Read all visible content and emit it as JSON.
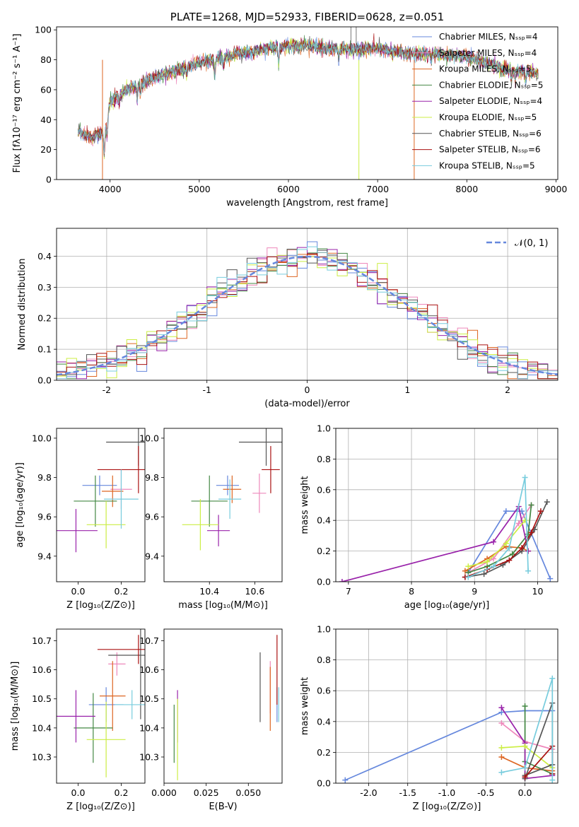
{
  "colors": {
    "Chabrier MILES": "#6688dd",
    "Salpeter MILES": "#ee88bb",
    "Kroupa MILES": "#dd6622",
    "Chabrier ELODIE": "#448844",
    "Salpeter ELODIE": "#9922aa",
    "Kroupa ELODIE": "#ccee44",
    "Chabrier STELIB": "#555555",
    "Salpeter STELIB": "#aa1111",
    "Kroupa STELIB": "#77ccdd"
  },
  "chart_data": [
    {
      "id": "spectrum",
      "type": "line",
      "title": "PLATE=1268, MJD=52933, FIBERID=0628, z=0.051",
      "xlabel": "wavelength [Angstrom, rest frame]",
      "ylabel": "Flux [fλ10⁻¹⁷ erg cm⁻² s⁻¹ A⁻¹]",
      "xlim": [
        3400,
        9020
      ],
      "ylim": [
        0,
        102
      ],
      "xticks": [
        4000,
        5000,
        6000,
        7000,
        8000,
        9000
      ],
      "yticks": [
        0,
        20,
        40,
        60,
        80,
        100
      ],
      "legend": "top-right",
      "legend_entries": [
        "Chabrier MILES, Nₛₛₚ=4",
        "Salpeter MILES, Nₛₛₚ=4",
        "Kroupa MILES, Nₛₛₚ=5",
        "Chabrier ELODIE, Nₛₛₚ=5",
        "Salpeter ELODIE, Nₛₛₚ=4",
        "Kroupa ELODIE, Nₛₛₚ=5",
        "Chabrier STELIB, Nₛₛₚ=6",
        "Salpeter STELIB, Nₛₛₚ=6",
        "Kroupa STELIB, Nₛₛₚ=5"
      ],
      "continuum_x": [
        3640,
        3800,
        3950,
        4000,
        4200,
        4500,
        5000,
        5300,
        5800,
        6200,
        6500,
        6800,
        7000,
        7300,
        7600,
        8000,
        8400,
        8800
      ],
      "continuum_y": [
        32,
        28,
        32,
        52,
        60,
        68,
        78,
        82,
        88,
        90,
        87,
        87,
        88,
        84,
        84,
        82,
        74,
        71
      ]
    },
    {
      "id": "residuals",
      "type": "histogram",
      "xlabel": "(data-model)/error",
      "ylabel": "Normed distribution",
      "xlim": [
        -2.5,
        2.5
      ],
      "ylim": [
        0,
        0.49
      ],
      "xticks": [
        -2,
        -1,
        0,
        1,
        2
      ],
      "yticks": [
        0.0,
        0.1,
        0.2,
        0.3,
        0.4
      ],
      "legend": "top-right",
      "reference_curve": "𝒩(0, 1)"
    },
    {
      "id": "age_vs_Z",
      "type": "errorbar",
      "xlabel": "Z [log₁₀(Z/Z⊙)]",
      "ylabel": "age [log₁₀(age/yr)]",
      "xlim": [
        -0.1,
        0.31
      ],
      "ylim": [
        9.27,
        10.05
      ],
      "xticks": [
        0.0,
        0.2
      ],
      "yticks": [
        9.4,
        9.6,
        9.8,
        10.0
      ],
      "points": [
        {
          "model": "Chabrier MILES",
          "x": 0.1,
          "y": 9.76,
          "xerr": 0.08,
          "yerr": 0.05
        },
        {
          "model": "Salpeter MILES",
          "x": 0.2,
          "y": 9.74,
          "xerr": 0.05,
          "yerr": 0.1
        },
        {
          "model": "Kroupa MILES",
          "x": 0.16,
          "y": 9.73,
          "xerr": 0.05,
          "yerr": 0.08
        },
        {
          "model": "Chabrier ELODIE",
          "x": 0.08,
          "y": 9.68,
          "xerr": 0.1,
          "yerr": 0.13
        },
        {
          "model": "Salpeter ELODIE",
          "x": -0.01,
          "y": 9.53,
          "xerr": 0.1,
          "yerr": 0.11
        },
        {
          "model": "Kroupa ELODIE",
          "x": 0.13,
          "y": 9.56,
          "xerr": 0.09,
          "yerr": 0.12
        },
        {
          "model": "Chabrier STELIB",
          "x": 0.28,
          "y": 9.98,
          "xerr": 0.15,
          "yerr": 0.12
        },
        {
          "model": "Salpeter STELIB",
          "x": 0.28,
          "y": 9.84,
          "xerr": 0.19,
          "yerr": 0.12
        },
        {
          "model": "Kroupa STELIB",
          "x": 0.2,
          "y": 9.69,
          "xerr": 0.08,
          "yerr": 0.15
        }
      ]
    },
    {
      "id": "age_vs_mass",
      "type": "errorbar",
      "xlabel": "mass [log₁₀(M/M⊙)]",
      "ylabel": "",
      "xlim": [
        10.2,
        10.72
      ],
      "ylim": [
        9.27,
        10.05
      ],
      "xticks": [
        10.4,
        10.6
      ],
      "yticks": [
        9.4,
        9.6,
        9.8,
        10.0
      ],
      "points": [
        {
          "model": "Chabrier MILES",
          "x": 10.48,
          "y": 9.76,
          "xerr": 0.05,
          "yerr": 0.05
        },
        {
          "model": "Salpeter MILES",
          "x": 10.62,
          "y": 9.72,
          "xerr": 0.03,
          "yerr": 0.1
        },
        {
          "model": "Kroupa MILES",
          "x": 10.5,
          "y": 9.74,
          "xerr": 0.04,
          "yerr": 0.07
        },
        {
          "model": "Chabrier ELODIE",
          "x": 10.4,
          "y": 9.68,
          "xerr": 0.08,
          "yerr": 0.13
        },
        {
          "model": "Salpeter ELODIE",
          "x": 10.44,
          "y": 9.53,
          "xerr": 0.05,
          "yerr": 0.08
        },
        {
          "model": "Kroupa ELODIE",
          "x": 10.36,
          "y": 9.56,
          "xerr": 0.08,
          "yerr": 0.13
        },
        {
          "model": "Chabrier STELIB",
          "x": 10.65,
          "y": 9.98,
          "xerr": 0.12,
          "yerr": 0.12
        },
        {
          "model": "Salpeter STELIB",
          "x": 10.67,
          "y": 9.84,
          "xerr": 0.04,
          "yerr": 0.12
        },
        {
          "model": "Kroupa STELIB",
          "x": 10.49,
          "y": 9.69,
          "xerr": 0.05,
          "yerr": 0.1
        }
      ]
    },
    {
      "id": "massweight_vs_age",
      "type": "line",
      "xlabel": "age [log₁₀(age/yr)]",
      "ylabel": "mass weight",
      "xlim": [
        6.8,
        10.32
      ],
      "ylim": [
        0,
        1.0
      ],
      "xticks": [
        7,
        8,
        9,
        10
      ],
      "yticks": [
        0.0,
        0.2,
        0.4,
        0.6,
        0.8,
        1.0
      ],
      "grid": true,
      "series": [
        {
          "model": "Chabrier MILES",
          "x": [
            8.9,
            9.5,
            9.75,
            10.2
          ],
          "y": [
            0.06,
            0.46,
            0.46,
            0.02
          ]
        },
        {
          "model": "Salpeter MILES",
          "x": [
            8.9,
            9.3,
            9.7,
            9.9
          ],
          "y": [
            0.06,
            0.15,
            0.38,
            0.5
          ]
        },
        {
          "model": "Kroupa MILES",
          "x": [
            8.85,
            9.2,
            9.5,
            9.75,
            9.85
          ],
          "y": [
            0.07,
            0.15,
            0.23,
            0.22,
            0.2
          ]
        },
        {
          "model": "Chabrier ELODIE",
          "x": [
            8.9,
            9.2,
            9.6,
            9.85,
            9.9
          ],
          "y": [
            0.06,
            0.1,
            0.18,
            0.31,
            0.5
          ]
        },
        {
          "model": "Salpeter ELODIE",
          "x": [
            6.9,
            9.3,
            9.7,
            9.85
          ],
          "y": [
            0.0,
            0.26,
            0.49,
            0.2
          ]
        },
        {
          "model": "Kroupa ELODIE",
          "x": [
            8.9,
            9.2,
            9.5,
            9.8
          ],
          "y": [
            0.1,
            0.13,
            0.25,
            0.4
          ]
        },
        {
          "model": "Chabrier STELIB",
          "x": [
            8.85,
            9.15,
            9.45,
            9.75,
            9.95,
            10.15
          ],
          "y": [
            0.03,
            0.05,
            0.11,
            0.2,
            0.34,
            0.52
          ]
        },
        {
          "model": "Salpeter STELIB",
          "x": [
            8.85,
            9.2,
            9.55,
            9.75,
            9.9,
            10.05
          ],
          "y": [
            0.03,
            0.08,
            0.14,
            0.22,
            0.32,
            0.46
          ]
        },
        {
          "model": "Kroupa STELIB",
          "x": [
            8.9,
            9.3,
            9.55,
            9.8,
            9.85
          ],
          "y": [
            0.03,
            0.1,
            0.22,
            0.68,
            0.07
          ]
        }
      ]
    },
    {
      "id": "mass_vs_Z",
      "type": "errorbar",
      "xlabel": "Z [log₁₀(Z/Z⊙)]",
      "ylabel": "mass [log₁₀(M/M⊙)]",
      "xlim": [
        -0.1,
        0.31
      ],
      "ylim": [
        10.21,
        10.74
      ],
      "xticks": [
        0.0,
        0.2
      ],
      "yticks": [
        10.3,
        10.4,
        10.5,
        10.6,
        10.7
      ],
      "points": [
        {
          "model": "Chabrier MILES",
          "x": 0.13,
          "y": 10.48,
          "xerr": 0.08,
          "yerr": 0.06
        },
        {
          "model": "Salpeter MILES",
          "x": 0.18,
          "y": 10.62,
          "xerr": 0.04,
          "yerr": 0.04
        },
        {
          "model": "Kroupa MILES",
          "x": 0.16,
          "y": 10.51,
          "xerr": 0.06,
          "yerr": 0.12
        },
        {
          "model": "Chabrier ELODIE",
          "x": 0.07,
          "y": 10.4,
          "xerr": 0.09,
          "yerr": 0.12
        },
        {
          "model": "Salpeter ELODIE",
          "x": -0.01,
          "y": 10.44,
          "xerr": 0.09,
          "yerr": 0.09
        },
        {
          "model": "Kroupa ELODIE",
          "x": 0.13,
          "y": 10.36,
          "xerr": 0.09,
          "yerr": 0.13
        },
        {
          "model": "Chabrier STELIB",
          "x": 0.29,
          "y": 10.65,
          "xerr": 0.15,
          "yerr": 0.22
        },
        {
          "model": "Salpeter STELIB",
          "x": 0.28,
          "y": 10.67,
          "xerr": 0.19,
          "yerr": 0.05
        },
        {
          "model": "Kroupa STELIB",
          "x": 0.25,
          "y": 10.48,
          "xerr": 0.08,
          "yerr": 0.05
        }
      ]
    },
    {
      "id": "mass_vs_ebv",
      "type": "errorbar",
      "xlabel": "E(B-V)",
      "ylabel": "",
      "xlim": [
        0.0,
        0.07
      ],
      "ylim": [
        10.21,
        10.74
      ],
      "xticks": [
        0.0,
        0.025,
        0.05
      ],
      "xticklabels": [
        "0.000",
        "0.025",
        "0.050"
      ],
      "yticks": [
        10.3,
        10.4,
        10.5,
        10.6,
        10.7
      ],
      "points": [
        {
          "model": "Chabrier MILES",
          "x": 0.067,
          "y": 10.48,
          "xerr": 0.0,
          "yerr": 0.06
        },
        {
          "model": "Salpeter MILES",
          "x": 0.063,
          "y": 10.54,
          "xerr": 0.0,
          "yerr": 0.09
        },
        {
          "model": "Kroupa MILES",
          "x": 0.063,
          "y": 10.5,
          "xerr": 0.0,
          "yerr": 0.11
        },
        {
          "model": "Chabrier ELODIE",
          "x": 0.006,
          "y": 10.38,
          "xerr": 0.0,
          "yerr": 0.1
        },
        {
          "model": "Salpeter ELODIE",
          "x": 0.008,
          "y": 10.44,
          "xerr": 0.0,
          "yerr": 0.09
        },
        {
          "model": "Kroupa ELODIE",
          "x": 0.008,
          "y": 10.36,
          "xerr": 0.0,
          "yerr": 0.14
        },
        {
          "model": "Chabrier STELIB",
          "x": 0.057,
          "y": 10.54,
          "xerr": 0.0,
          "yerr": 0.12
        },
        {
          "model": "Salpeter STELIB",
          "x": 0.067,
          "y": 10.6,
          "xerr": 0.0,
          "yerr": 0.12
        },
        {
          "model": "Kroupa STELIB",
          "x": 0.068,
          "y": 10.48,
          "xerr": 0.0,
          "yerr": 0.06
        }
      ]
    },
    {
      "id": "massweight_vs_Z",
      "type": "line",
      "xlabel": "Z [log₁₀(Z/Z⊙)]",
      "ylabel": "mass weight",
      "xlim": [
        -2.42,
        0.42
      ],
      "ylim": [
        0,
        1.0
      ],
      "xticks": [
        -2.0,
        -1.5,
        -1.0,
        -0.5,
        0.0
      ],
      "yticks": [
        0.0,
        0.2,
        0.4,
        0.6,
        0.8,
        1.0
      ],
      "grid": true,
      "series": [
        {
          "model": "Chabrier MILES",
          "x": [
            -2.3,
            -0.3,
            0.0,
            0.35
          ],
          "y": [
            0.02,
            0.46,
            0.47,
            0.47
          ]
        },
        {
          "model": "Salpeter MILES",
          "x": [
            -0.3,
            0.0,
            0.35
          ],
          "y": [
            0.39,
            0.27,
            0.22
          ]
        },
        {
          "model": "Kroupa MILES",
          "x": [
            -0.3,
            0.0,
            0.35
          ],
          "y": [
            0.17,
            0.1,
            0.08
          ]
        },
        {
          "model": "Chabrier ELODIE",
          "x": [
            0.0,
            0.0,
            0.35
          ],
          "y": [
            0.5,
            0.14,
            0.06
          ]
        },
        {
          "model": "Salpeter ELODIE",
          "x": [
            -0.3,
            0.0,
            0.0,
            0.35
          ],
          "y": [
            0.49,
            0.26,
            0.03,
            0.05
          ]
        },
        {
          "model": "Kroupa ELODIE",
          "x": [
            -0.3,
            0.0,
            0.35
          ],
          "y": [
            0.23,
            0.24,
            0.1
          ]
        },
        {
          "model": "Chabrier STELIB",
          "x": [
            0.0,
            0.35,
            0.35,
            0.0
          ],
          "y": [
            0.03,
            0.52,
            0.12,
            0.05
          ]
        },
        {
          "model": "Salpeter STELIB",
          "x": [
            0.0,
            0.35,
            0.35
          ],
          "y": [
            0.04,
            0.24,
            0.06
          ]
        },
        {
          "model": "Kroupa STELIB",
          "x": [
            -0.3,
            0.0,
            0.35,
            0.35
          ],
          "y": [
            0.07,
            0.1,
            0.68,
            0.02
          ]
        }
      ]
    }
  ]
}
